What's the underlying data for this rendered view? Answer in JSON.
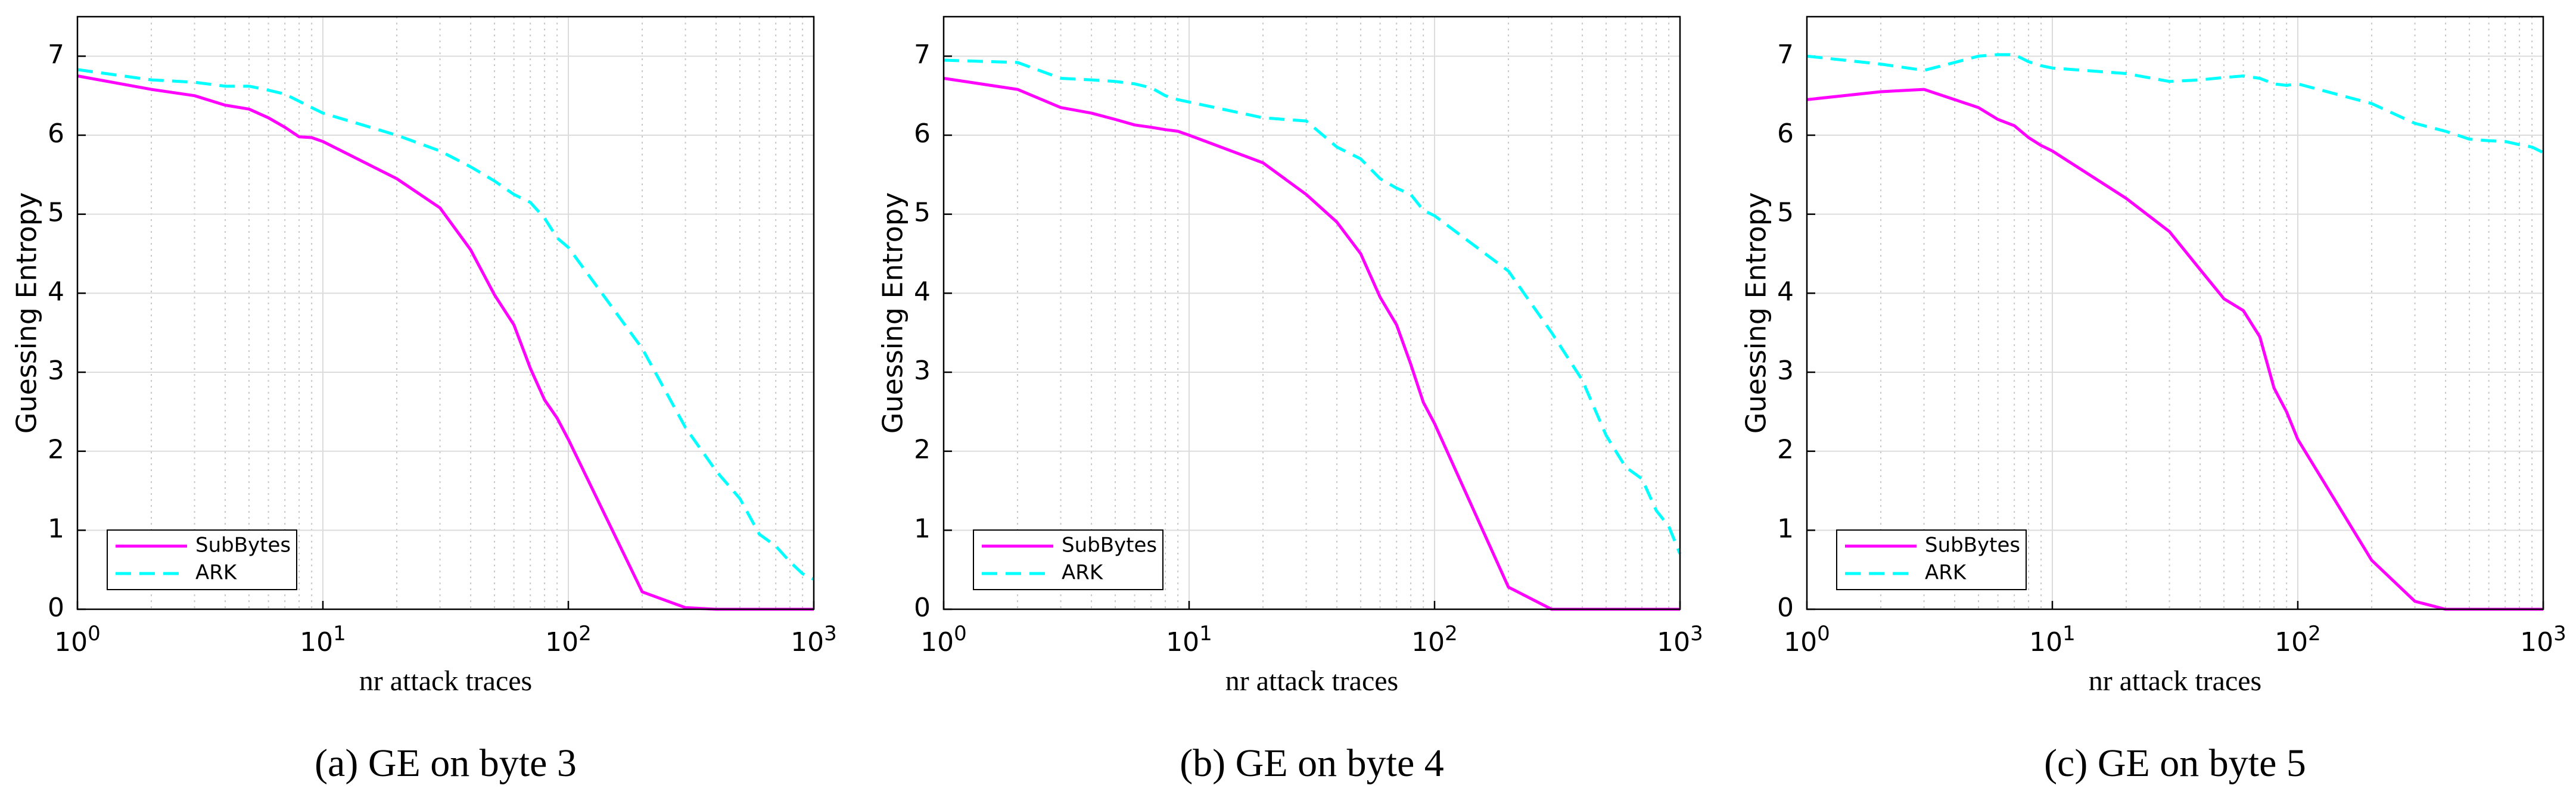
{
  "chart_data": [
    {
      "type": "line",
      "caption": "(a) GE on byte 3",
      "xlabel": "nr attack traces",
      "ylabel": "Guessing Entropy",
      "xscale": "log",
      "xlim": [
        1,
        1000
      ],
      "ylim": [
        0,
        7.5
      ],
      "grid": true,
      "minor_grid": true,
      "legend": "lower left",
      "xticks": [
        {
          "value": 1,
          "label": "10",
          "exponent": "0"
        },
        {
          "value": 10,
          "label": "10",
          "exponent": "1"
        },
        {
          "value": 100,
          "label": "10",
          "exponent": "2"
        },
        {
          "value": 1000,
          "label": "10",
          "exponent": "3"
        }
      ],
      "yticks": [
        0,
        1,
        2,
        3,
        4,
        5,
        6,
        7
      ],
      "x": [
        1,
        2,
        3,
        4,
        5,
        6,
        7,
        8,
        9,
        10,
        20,
        30,
        40,
        50,
        60,
        70,
        80,
        90,
        100,
        200,
        300,
        400,
        500,
        600,
        700,
        800,
        900,
        1000
      ],
      "series": [
        {
          "name": "SubBytes",
          "color": "#ff00ff",
          "linestyle": "solid",
          "values": [
            6.75,
            6.58,
            6.5,
            6.38,
            6.33,
            6.22,
            6.1,
            5.98,
            5.97,
            5.92,
            5.45,
            5.08,
            4.55,
            3.98,
            3.6,
            3.05,
            2.65,
            2.42,
            2.15,
            0.22,
            0.02,
            0,
            0,
            0,
            0,
            0,
            0,
            0
          ]
        },
        {
          "name": "ARK",
          "color": "#00ffff",
          "linestyle": "dashed",
          "values": [
            6.83,
            6.7,
            6.67,
            6.62,
            6.62,
            6.57,
            6.52,
            6.43,
            6.35,
            6.28,
            6.0,
            5.8,
            5.6,
            5.42,
            5.25,
            5.15,
            4.95,
            4.7,
            4.58,
            3.3,
            2.3,
            1.75,
            1.4,
            0.95,
            0.8,
            0.6,
            0.45,
            0.38
          ]
        }
      ]
    },
    {
      "type": "line",
      "caption": "(b) GE on byte 4",
      "xlabel": "nr attack traces",
      "ylabel": "Guessing Entropy",
      "xscale": "log",
      "xlim": [
        1,
        1000
      ],
      "ylim": [
        0,
        7.5
      ],
      "grid": true,
      "minor_grid": true,
      "legend": "lower left",
      "xticks": [
        {
          "value": 1,
          "label": "10",
          "exponent": "0"
        },
        {
          "value": 10,
          "label": "10",
          "exponent": "1"
        },
        {
          "value": 100,
          "label": "10",
          "exponent": "2"
        },
        {
          "value": 1000,
          "label": "10",
          "exponent": "3"
        }
      ],
      "yticks": [
        0,
        1,
        2,
        3,
        4,
        5,
        6,
        7
      ],
      "x": [
        1,
        2,
        3,
        4,
        5,
        6,
        7,
        8,
        9,
        10,
        20,
        30,
        40,
        50,
        60,
        70,
        80,
        90,
        100,
        200,
        300,
        400,
        500,
        600,
        700,
        800,
        900,
        1000
      ],
      "series": [
        {
          "name": "SubBytes",
          "color": "#ff00ff",
          "linestyle": "solid",
          "values": [
            6.72,
            6.58,
            6.35,
            6.28,
            6.2,
            6.13,
            6.1,
            6.07,
            6.05,
            6.0,
            5.65,
            5.25,
            4.9,
            4.5,
            3.95,
            3.6,
            3.1,
            2.62,
            2.35,
            0.28,
            0,
            0,
            0,
            0,
            0,
            0,
            0,
            0
          ]
        },
        {
          "name": "ARK",
          "color": "#00ffff",
          "linestyle": "dashed",
          "values": [
            6.95,
            6.92,
            6.72,
            6.7,
            6.68,
            6.65,
            6.6,
            6.5,
            6.45,
            6.42,
            6.22,
            6.18,
            5.85,
            5.7,
            5.45,
            5.33,
            5.25,
            5.05,
            4.98,
            4.28,
            3.5,
            2.9,
            2.2,
            1.8,
            1.65,
            1.25,
            1.05,
            0.7
          ]
        }
      ]
    },
    {
      "type": "line",
      "caption": "(c) GE on byte 5",
      "xlabel": "nr attack traces",
      "ylabel": "Guessing Entropy",
      "xscale": "log",
      "xlim": [
        1,
        1000
      ],
      "ylim": [
        0,
        7.5
      ],
      "grid": true,
      "minor_grid": true,
      "legend": "lower left",
      "xticks": [
        {
          "value": 1,
          "label": "10",
          "exponent": "0"
        },
        {
          "value": 10,
          "label": "10",
          "exponent": "1"
        },
        {
          "value": 100,
          "label": "10",
          "exponent": "2"
        },
        {
          "value": 1000,
          "label": "10",
          "exponent": "3"
        }
      ],
      "yticks": [
        0,
        1,
        2,
        3,
        4,
        5,
        6,
        7
      ],
      "x": [
        1,
        2,
        3,
        4,
        5,
        6,
        7,
        8,
        9,
        10,
        20,
        30,
        40,
        50,
        60,
        70,
        80,
        90,
        100,
        200,
        300,
        400,
        500,
        600,
        700,
        800,
        900,
        1000
      ],
      "series": [
        {
          "name": "SubBytes",
          "color": "#ff00ff",
          "linestyle": "solid",
          "values": [
            6.45,
            6.55,
            6.58,
            6.45,
            6.35,
            6.2,
            6.12,
            5.97,
            5.87,
            5.8,
            5.2,
            4.78,
            4.3,
            3.93,
            3.78,
            3.45,
            2.8,
            2.5,
            2.15,
            0.62,
            0.1,
            0,
            0,
            0,
            0,
            0,
            0,
            0
          ]
        },
        {
          "name": "ARK",
          "color": "#00ffff",
          "linestyle": "dashed",
          "values": [
            7.0,
            6.9,
            6.82,
            6.92,
            7.0,
            7.02,
            7.02,
            6.93,
            6.88,
            6.85,
            6.78,
            6.68,
            6.7,
            6.73,
            6.75,
            6.72,
            6.65,
            6.63,
            6.65,
            6.4,
            6.15,
            6.05,
            5.95,
            5.93,
            5.92,
            5.88,
            5.85,
            5.78
          ]
        }
      ]
    }
  ]
}
